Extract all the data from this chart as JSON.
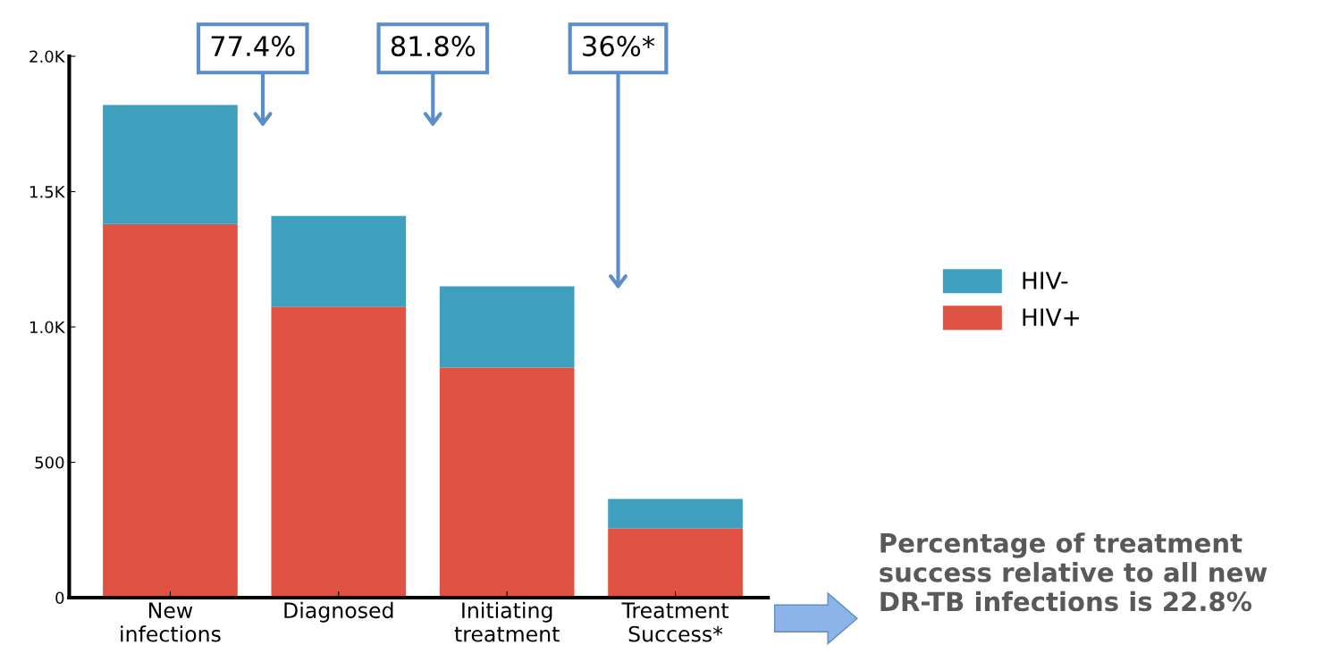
{
  "chart_data": {
    "type": "bar",
    "stacked": true,
    "categories": [
      "New\ninfections",
      "Diagnosed",
      "Initiating\ntreatment",
      "Treatment\nSuccess*"
    ],
    "series": [
      {
        "name": "HIV+",
        "color": "#e05343",
        "values": [
          1380,
          1075,
          850,
          255
        ]
      },
      {
        "name": "HIV-",
        "color": "#3f9fbf",
        "values": [
          440,
          335,
          300,
          110
        ]
      }
    ],
    "ylim": [
      0,
      2000
    ],
    "yticks": [
      0,
      500,
      {
        "value": 1000,
        "label": "1.0K"
      },
      {
        "value": 1500,
        "label": "1.5K"
      },
      {
        "value": 2000,
        "label": "2.0K"
      }
    ],
    "grid": false,
    "legend": "right",
    "annotations": [
      "77.4%",
      "81.8%",
      "36%*",
      "Percentage of treatment success relative to all new DR-TB infections is 22.8%"
    ]
  }
}
